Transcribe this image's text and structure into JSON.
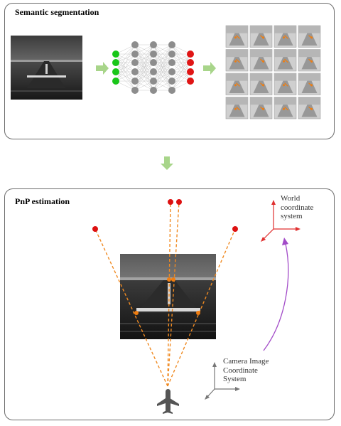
{
  "top_panel": {
    "title": "Semantic segmentation"
  },
  "bottom_panel": {
    "title": "PnP estimation"
  },
  "labels": {
    "world_frame": [
      "World",
      "coordinate",
      "system"
    ],
    "camera_frame": [
      "Camera Image",
      "Coordinate",
      "System"
    ]
  },
  "colors": {
    "input_node": "#19c619",
    "hidden_node": "#8d8d8d",
    "output_node": "#e01515",
    "flow_arrow": "#a8d58a",
    "pnp_ray": "#f08a22",
    "keypoint_3d": "#dd1111",
    "keypoint_2d": "#f07d10",
    "world_axes": "#e03030",
    "camera_axes": "#777777",
    "transform_arc": "#a24bc8",
    "aircraft": "#555555"
  },
  "icons": [
    "right-arrow-icon",
    "down-arrow-icon",
    "aircraft-icon"
  ]
}
